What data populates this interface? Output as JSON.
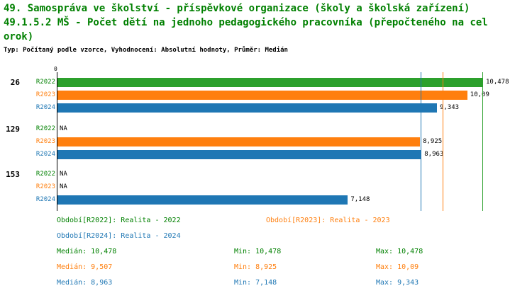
{
  "colors": {
    "green": "#2ca02c",
    "orange": "#ff7f0e",
    "blue": "#1f77b4",
    "text_green": "#008000",
    "black": "#000000"
  },
  "header": {
    "title_line1": "49. Samospráva ve školství - příspěvkové organizace (školy a školská zařízení)",
    "title_line2": "49.1.5.2 MŠ - Počet dětí na jednoho pedagogického pracovníka (přepočteného na cel",
    "title_line3": "orok)",
    "subtitle": "Typ: Počítaný podle vzorce, Vyhodnocení: Absolutní hodnoty, Průměr: Medián"
  },
  "chart_data": {
    "type": "bar",
    "orientation": "horizontal",
    "axis_origin_label": "0",
    "xlim": [
      0,
      10.478
    ],
    "grid": false,
    "groups": [
      {
        "label": "26",
        "rows": [
          {
            "series": "R2022",
            "color": "green",
            "value": 10.478,
            "display": "10,478"
          },
          {
            "series": "R2023",
            "color": "orange",
            "value": 10.09,
            "display": "10,09"
          },
          {
            "series": "R2024",
            "color": "blue",
            "value": 9.343,
            "display": "9,343"
          }
        ]
      },
      {
        "label": "129",
        "rows": [
          {
            "series": "R2022",
            "color": "green",
            "value": null,
            "display": "NA"
          },
          {
            "series": "R2023",
            "color": "orange",
            "value": 8.925,
            "display": "8,925"
          },
          {
            "series": "R2024",
            "color": "blue",
            "value": 8.963,
            "display": "8,963"
          }
        ]
      },
      {
        "label": "153",
        "rows": [
          {
            "series": "R2022",
            "color": "green",
            "value": null,
            "display": "NA"
          },
          {
            "series": "R2023",
            "color": "orange",
            "value": null,
            "display": "NA"
          },
          {
            "series": "R2024",
            "color": "blue",
            "value": 7.148,
            "display": "7,148"
          }
        ]
      }
    ],
    "median_lines": [
      {
        "color": "green",
        "value": 10.478
      },
      {
        "color": "orange",
        "value": 9.507
      },
      {
        "color": "blue",
        "value": 8.963
      }
    ]
  },
  "legend": {
    "periods": [
      {
        "text": "Období[R2022]: Realita - 2022"
      },
      {
        "text": "Období[R2023]: Realita - 2023"
      },
      {
        "text": "Období[R2024]: Realita - 2024"
      }
    ],
    "stats": [
      {
        "median": "Medián: 10,478",
        "min": "Min: 10,478",
        "max": "Max: 10,478"
      },
      {
        "median": "Medián: 9,507",
        "min": "Min: 8,925",
        "max": "Max: 10,09"
      },
      {
        "median": "Medián: 8,963",
        "min": "Min: 7,148",
        "max": "Max: 9,343"
      }
    ]
  }
}
